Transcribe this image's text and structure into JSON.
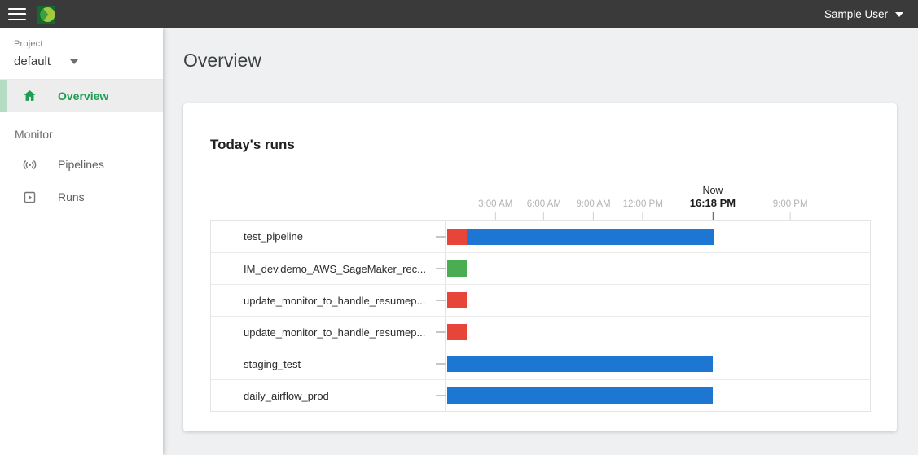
{
  "topbar": {
    "user_menu": {
      "label": "Sample User"
    }
  },
  "sidebar": {
    "project": {
      "label": "Project",
      "selected": "default"
    },
    "nav": [
      {
        "label": "Overview",
        "icon": "home",
        "active": true
      }
    ],
    "monitor": {
      "section_label": "Monitor",
      "items": [
        {
          "label": "Pipelines",
          "icon": "broadcast"
        },
        {
          "label": "Runs",
          "icon": "play-box"
        }
      ]
    }
  },
  "main": {
    "page_title": "Overview",
    "card": {
      "title": "Today's runs"
    }
  },
  "chart_data": {
    "type": "gantt",
    "title": "Today's runs",
    "x_axis": {
      "unit": "time-of-day",
      "ticks": [
        {
          "label": "3:00 AM",
          "pos_pct": 11.9
        },
        {
          "label": "6:00 AM",
          "pos_pct": 23.3
        },
        {
          "label": "9:00 AM",
          "pos_pct": 34.9
        },
        {
          "label": "12:00 PM",
          "pos_pct": 46.5
        },
        {
          "label": "9:00 PM",
          "pos_pct": 81.1
        }
      ],
      "now_marker": {
        "title": "Now",
        "time_label": "16:18 PM",
        "pos_pct": 62.9
      }
    },
    "rows": [
      {
        "label": "test_pipeline",
        "bars": [
          {
            "status": "failed",
            "color": "#e8453a",
            "start_pct": 0.4,
            "width_pct": 4.6
          },
          {
            "status": "running",
            "color": "#1d76d2",
            "start_pct": 5.0,
            "width_pct": 58.1
          }
        ]
      },
      {
        "label": "IM_dev.demo_AWS_SageMaker_rec...",
        "bars": [
          {
            "status": "succeeded",
            "color": "#4aad52",
            "start_pct": 0.4,
            "width_pct": 4.6
          }
        ]
      },
      {
        "label": "update_monitor_to_handle_resumep...",
        "bars": [
          {
            "status": "failed",
            "color": "#e8453a",
            "start_pct": 0.4,
            "width_pct": 4.6
          }
        ]
      },
      {
        "label": "update_monitor_to_handle_resumep...",
        "bars": [
          {
            "status": "failed",
            "color": "#e8453a",
            "start_pct": 0.4,
            "width_pct": 4.6
          }
        ]
      },
      {
        "label": "staging_test",
        "bars": [
          {
            "status": "running",
            "color": "#1d76d2",
            "start_pct": 0.4,
            "width_pct": 62.5
          }
        ]
      },
      {
        "label": "daily_airflow_prod",
        "bars": [
          {
            "status": "running",
            "color": "#1d76d2",
            "start_pct": 0.4,
            "width_pct": 62.5
          }
        ]
      }
    ]
  },
  "colors": {
    "topbar_bg": "#3a3a3a",
    "accent_green": "#1f9d55",
    "bar_red": "#e8453a",
    "bar_blue": "#1d76d2",
    "bar_green": "#4aad52"
  }
}
